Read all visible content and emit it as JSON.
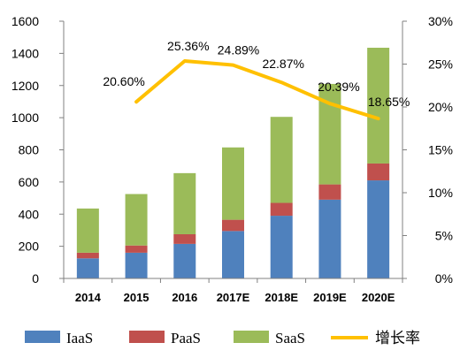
{
  "chart_data": {
    "type": "bar",
    "categories": [
      "2014",
      "2015",
      "2016",
      "2017E",
      "2018E",
      "2019E",
      "2020E"
    ],
    "series": [
      {
        "name": "IaaS",
        "type": "bar",
        "axis": "left",
        "color": "#4F81BD",
        "values": [
          125,
          160,
          215,
          295,
          390,
          490,
          610
        ]
      },
      {
        "name": "PaaS",
        "type": "bar",
        "axis": "left",
        "color": "#C0504D",
        "values": [
          35,
          45,
          60,
          70,
          80,
          95,
          105
        ]
      },
      {
        "name": "SaaS",
        "type": "bar",
        "axis": "left",
        "color": "#9BBB59",
        "values": [
          275,
          320,
          380,
          450,
          535,
          625,
          720
        ]
      },
      {
        "name": "增长率",
        "type": "line",
        "axis": "right",
        "color": "#FFC000",
        "values": [
          null,
          20.6,
          25.36,
          24.89,
          22.87,
          20.39,
          18.65
        ],
        "labels": [
          "",
          "20.60%",
          "25.36%",
          "24.89%",
          "22.87%",
          "20.39%",
          "18.65%"
        ]
      }
    ],
    "stacked": true,
    "title": "",
    "xlabel": "",
    "ylabel": "",
    "ylim": [
      0,
      1600
    ],
    "yticks": [
      "0",
      "200",
      "400",
      "600",
      "800",
      "1000",
      "1200",
      "1400",
      "1600"
    ],
    "y2lim": [
      0,
      30
    ],
    "y2ticks": [
      "0%",
      "5%",
      "10%",
      "15%",
      "20%",
      "25%",
      "30%"
    ],
    "grid": false,
    "legend_position": "bottom"
  }
}
